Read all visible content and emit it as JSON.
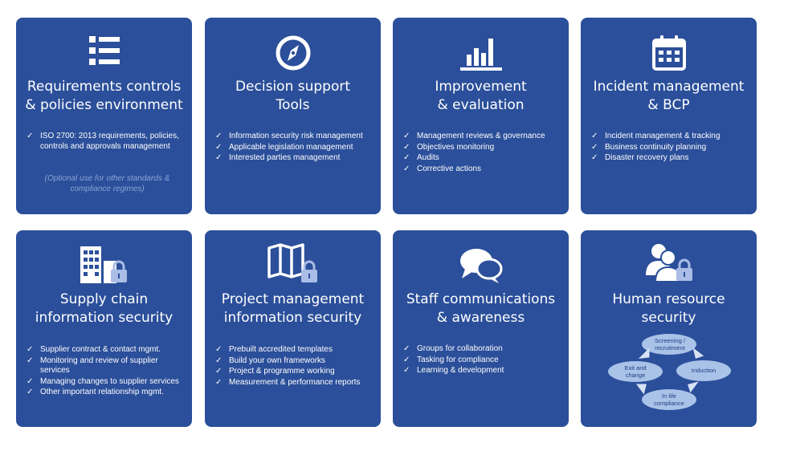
{
  "cards": [
    {
      "icon": "list-icon",
      "title": [
        "Requirements controls",
        "& policies environment"
      ],
      "items": [
        "ISO 2700: 2013 requirements, policies, controls and approvals management"
      ],
      "note": "(Optional use for other standards & compliance regimes)"
    },
    {
      "icon": "compass-icon",
      "title": [
        "Decision support",
        "Tools"
      ],
      "items": [
        "Information security risk management",
        "Applicable legislation management",
        "Interested parties management"
      ]
    },
    {
      "icon": "bar-chart-icon",
      "title": [
        "Improvement",
        "& evaluation"
      ],
      "items": [
        "Management reviews & governance",
        "Objectives monitoring",
        "Audits",
        "Corrective actions"
      ]
    },
    {
      "icon": "calendar-icon",
      "title": [
        "Incident management",
        "& BCP"
      ],
      "items": [
        "Incident management & tracking",
        "Business continuity  planning",
        "Disaster recovery plans"
      ]
    },
    {
      "icon": "building-lock-icon",
      "title": [
        "Supply chain",
        "information security"
      ],
      "items": [
        "Supplier contract & contact mgmt.",
        "Monitoring and review of supplier services",
        "Managing changes to supplier services",
        "Other important relationship mgmt."
      ]
    },
    {
      "icon": "map-lock-icon",
      "title": [
        "Project management",
        "information security"
      ],
      "items": [
        "Prebuilt accredited templates",
        "Build your own frameworks",
        "Project & programme working",
        "Measurement & performance reports"
      ]
    },
    {
      "icon": "speech-bubbles-icon",
      "title": [
        "Staff  communications",
        "& awareness"
      ],
      "items": [
        "Groups for collaboration",
        "Tasking for compliance",
        "Learning & development"
      ]
    },
    {
      "icon": "people-lock-icon",
      "title": [
        "Human resource",
        "security"
      ],
      "items": [],
      "cycle": [
        "Screening / recruitment",
        "Induction",
        "In life compliance",
        "Exit and change"
      ]
    }
  ]
}
